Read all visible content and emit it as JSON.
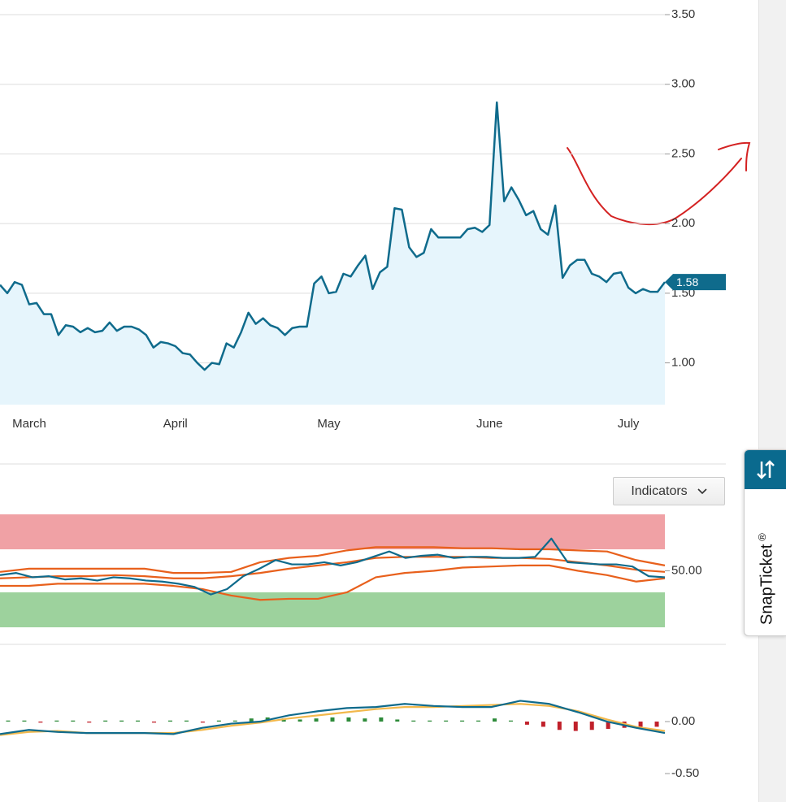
{
  "chart_data": [
    {
      "type": "line",
      "color": "#0f6b8c",
      "area_color": "#e6f5fc",
      "grid": true,
      "values": [
        1.56,
        1.5,
        1.58,
        1.56,
        1.42,
        1.43,
        1.35,
        1.35,
        1.2,
        1.27,
        1.26,
        1.22,
        1.25,
        1.22,
        1.23,
        1.29,
        1.23,
        1.26,
        1.26,
        1.24,
        1.2,
        1.11,
        1.15,
        1.14,
        1.12,
        1.07,
        1.06,
        1.0,
        0.95,
        1.0,
        0.99,
        1.14,
        1.11,
        1.22,
        1.36,
        1.28,
        1.32,
        1.27,
        1.25,
        1.2,
        1.25,
        1.26,
        1.26,
        1.57,
        1.62,
        1.5,
        1.51,
        1.64,
        1.62,
        1.7,
        1.77,
        1.53,
        1.65,
        1.69,
        2.11,
        2.1,
        1.83,
        1.76,
        1.79,
        1.96,
        1.9,
        1.9,
        1.9,
        1.9,
        1.96,
        1.97,
        1.94,
        1.99,
        2.87,
        2.16,
        2.26,
        2.17,
        2.06,
        2.09,
        1.96,
        1.92,
        2.13,
        1.61,
        1.7,
        1.74,
        1.74,
        1.64,
        1.62,
        1.58,
        1.64,
        1.65,
        1.54,
        1.5,
        1.53,
        1.51,
        1.51,
        1.58
      ],
      "xticks": [
        {
          "value": 4,
          "label": "March"
        },
        {
          "value": 24,
          "label": "April"
        },
        {
          "value": 45,
          "label": "May"
        },
        {
          "value": 67,
          "label": "June"
        },
        {
          "value": 86,
          "label": "July"
        }
      ],
      "ylim": [
        0.7,
        3.605
      ],
      "yticks": [
        {
          "value": 1.0,
          "label": "1.00"
        },
        {
          "value": 1.5,
          "label": "1.50"
        },
        {
          "value": 2.0,
          "label": "2.00"
        },
        {
          "value": 2.5,
          "label": "2.50"
        },
        {
          "value": 3.0,
          "label": "3.00"
        },
        {
          "value": 3.5,
          "label": "3.50"
        }
      ]
    },
    {
      "type": "line",
      "ylim": [
        -2.5,
        102.5
      ],
      "yticks": [
        {
          "value": 50,
          "label": "50.00"
        }
      ],
      "bands": [
        {
          "from": 70,
          "to": 102.5,
          "color": "#f0a1a5"
        },
        {
          "from": -2.5,
          "to": 30,
          "color": "#9dd29d"
        }
      ],
      "series": [
        {
          "color": "#e8601c",
          "values": [
            49,
            52,
            52,
            52,
            52,
            52,
            48,
            48,
            49,
            58,
            62,
            64,
            69,
            72,
            72,
            72,
            71,
            71,
            70,
            70,
            69,
            68,
            60,
            55
          ]
        },
        {
          "color": "#e8601c",
          "values": [
            43,
            44,
            45,
            45,
            46,
            45,
            43,
            43,
            45,
            48,
            52,
            55,
            58,
            62,
            63,
            63,
            63,
            62,
            62,
            61,
            58,
            55,
            51,
            49
          ]
        },
        {
          "color": "#e8601c",
          "values": [
            36,
            36,
            38,
            38,
            38,
            38,
            36,
            33,
            27,
            23,
            24,
            24,
            30,
            44,
            48,
            50,
            53,
            54,
            55,
            55,
            50,
            46,
            40,
            43
          ]
        },
        {
          "color": "#0f6b8c",
          "values": [
            46,
            48,
            44,
            45,
            42,
            43,
            41,
            44,
            43,
            41,
            40,
            38,
            35,
            28,
            33,
            45,
            52,
            60,
            56,
            56,
            58,
            55,
            58,
            63,
            68,
            62,
            64,
            65,
            62,
            63,
            63,
            62,
            62,
            63,
            80,
            58,
            57,
            56,
            56,
            54,
            45,
            44
          ]
        }
      ]
    },
    {
      "type": "line",
      "ylim": [
        -0.5625,
        0.727
      ],
      "yticks": [
        {
          "value": 0,
          "label": "0.00"
        },
        {
          "value": -0.5,
          "label": "-0.50"
        }
      ],
      "histogram": {
        "positive_color": "#2e8b3a",
        "negative_color": "#c0202a",
        "values": [
          0.01,
          0.01,
          -0.01,
          0.01,
          0.01,
          -0.01,
          0.01,
          0.01,
          0.01,
          -0.01,
          0.01,
          0.01,
          -0.01,
          0.01,
          0.01,
          0.03,
          0.04,
          0.03,
          0.02,
          0.03,
          0.04,
          0.04,
          0.03,
          0.04,
          0.02,
          0.01,
          0.01,
          0.01,
          0.01,
          0.01,
          0.03,
          0.01,
          -0.03,
          -0.05,
          -0.08,
          -0.09,
          -0.08,
          -0.07,
          -0.06,
          -0.05,
          -0.05
        ]
      },
      "series": [
        {
          "color": "#f2b84b",
          "values": [
            -0.13,
            -0.1,
            -0.09,
            -0.11,
            -0.11,
            -0.11,
            -0.11,
            -0.08,
            -0.04,
            -0.01,
            0.03,
            0.06,
            0.09,
            0.12,
            0.14,
            0.14,
            0.15,
            0.16,
            0.17,
            0.15,
            0.1,
            0.02,
            -0.05,
            -0.09
          ]
        },
        {
          "color": "#0f6b8c",
          "values": [
            -0.12,
            -0.08,
            -0.1,
            -0.11,
            -0.11,
            -0.11,
            -0.12,
            -0.06,
            -0.02,
            0.0,
            0.06,
            0.1,
            0.13,
            0.14,
            0.17,
            0.15,
            0.14,
            0.14,
            0.2,
            0.17,
            0.09,
            0.0,
            -0.06,
            -0.11
          ]
        }
      ]
    }
  ],
  "ui": {
    "indicators_button": "Indicators",
    "snapticket": "SnapTicket",
    "registered": "®"
  }
}
